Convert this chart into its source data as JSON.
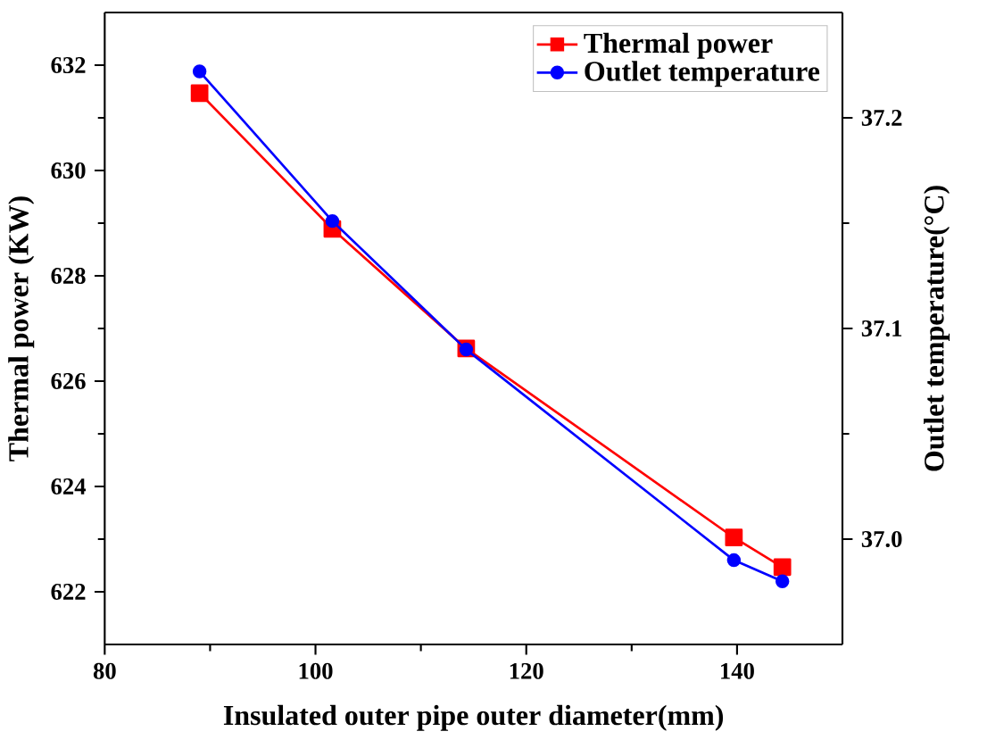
{
  "chart_data": {
    "type": "line",
    "xlabel": "Insulated outer pipe outer diameter(mm)",
    "ylabel": "Thermal power (KW)",
    "y2label": "Outlet temperature(°C)",
    "x": [
      89,
      101.6,
      114.3,
      139.7,
      144.3
    ],
    "xlim": [
      80,
      150
    ],
    "xticks": [
      80,
      100,
      120,
      140
    ],
    "ylim": [
      621,
      633
    ],
    "yticks": [
      622,
      624,
      626,
      628,
      630,
      632
    ],
    "y2lim": [
      36.95,
      37.25
    ],
    "y2ticks": [
      {
        "value": 37.0,
        "label": "37.0"
      },
      {
        "value": 37.1,
        "label": "37.1"
      },
      {
        "value": 37.2,
        "label": "37.2"
      }
    ],
    "legend": "top right",
    "grid": false,
    "line_style": "solid",
    "series": [
      {
        "name": "Thermal power",
        "color": "#ff0000",
        "marker": "square",
        "values": [
          631.47,
          628.89,
          626.62,
          623.03,
          622.47
        ]
      },
      {
        "name": "Outlet temperature",
        "color": "#0000ff",
        "marker": "circle",
        "axis": "y2",
        "values": [
          37.222,
          37.151,
          37.09,
          36.99,
          36.98
        ]
      }
    ]
  }
}
